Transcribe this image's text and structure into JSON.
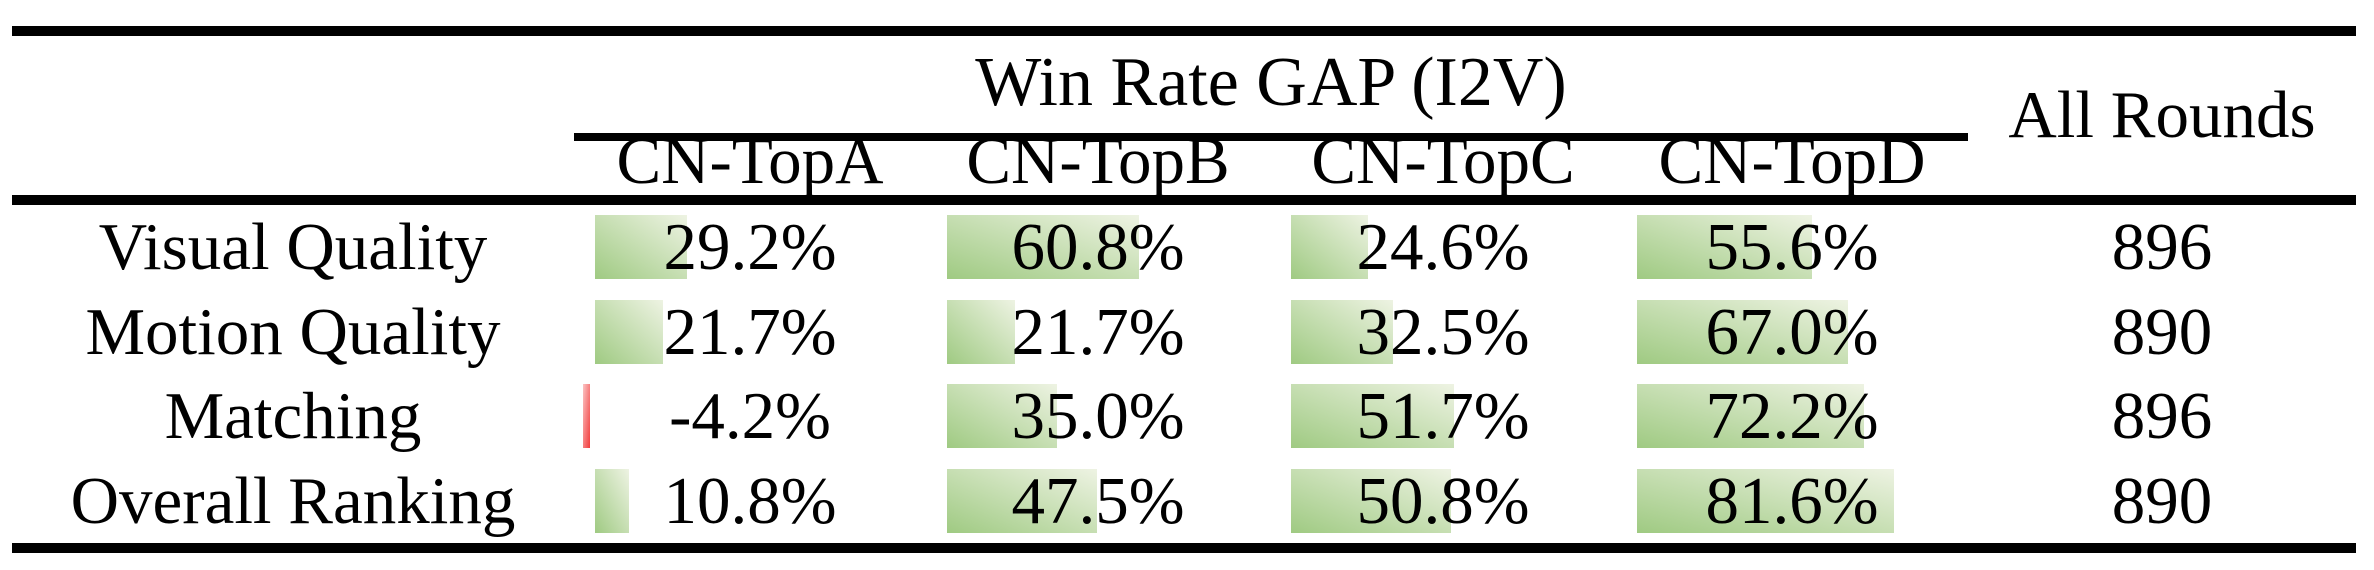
{
  "table": {
    "title": "Win Rate GAP (I2V)",
    "all_rounds_header": "All Rounds",
    "columns": [
      "CN-TopA",
      "CN-TopB",
      "CN-TopC",
      "CN-TopD"
    ],
    "rows": [
      {
        "label": "Visual Quality",
        "values": [
          29.2,
          60.8,
          24.6,
          55.6
        ],
        "display": [
          "29.2%",
          "60.8%",
          "24.6%",
          "55.6%"
        ],
        "rounds": "896"
      },
      {
        "label": "Motion Quality",
        "values": [
          21.7,
          21.7,
          32.5,
          67.0
        ],
        "display": [
          "21.7%",
          "21.7%",
          "32.5%",
          "67.0%"
        ],
        "rounds": "890"
      },
      {
        "label": "Matching",
        "values": [
          -4.2,
          35.0,
          51.7,
          72.2
        ],
        "display": [
          "-4.2%",
          "35.0%",
          "51.7%",
          "72.2%"
        ],
        "rounds": "896"
      },
      {
        "label": "Overall Ranking",
        "values": [
          10.8,
          47.5,
          50.8,
          81.6
        ],
        "display": [
          "10.8%",
          "47.5%",
          "50.8%",
          "81.6%"
        ],
        "rounds": "890"
      }
    ],
    "colors": {
      "positive_bar_start": "#9fca82",
      "positive_bar_end": "#eef3e3",
      "negative_bar_start": "#f23b3b",
      "negative_bar_end": "#fbc4c4",
      "rule": "#000000",
      "text": "#000000",
      "background": "#ffffff"
    }
  },
  "chart_data": {
    "type": "table",
    "title": "Win Rate GAP (I2V)",
    "categories": [
      "Visual Quality",
      "Motion Quality",
      "Matching",
      "Overall Ranking"
    ],
    "series": [
      {
        "name": "CN-TopA",
        "values": [
          29.2,
          21.7,
          -4.2,
          10.8
        ]
      },
      {
        "name": "CN-TopB",
        "values": [
          60.8,
          21.7,
          35.0,
          47.5
        ]
      },
      {
        "name": "CN-TopC",
        "values": [
          24.6,
          32.5,
          51.7,
          50.8
        ]
      },
      {
        "name": "CN-TopD",
        "values": [
          55.6,
          67.0,
          72.2,
          81.6
        ]
      }
    ],
    "all_rounds": [
      896,
      890,
      896,
      890
    ],
    "value_unit": "%",
    "notes": "In-cell data bars: green gradient for positive values (length proportional to value), thin red bar for negative value"
  }
}
